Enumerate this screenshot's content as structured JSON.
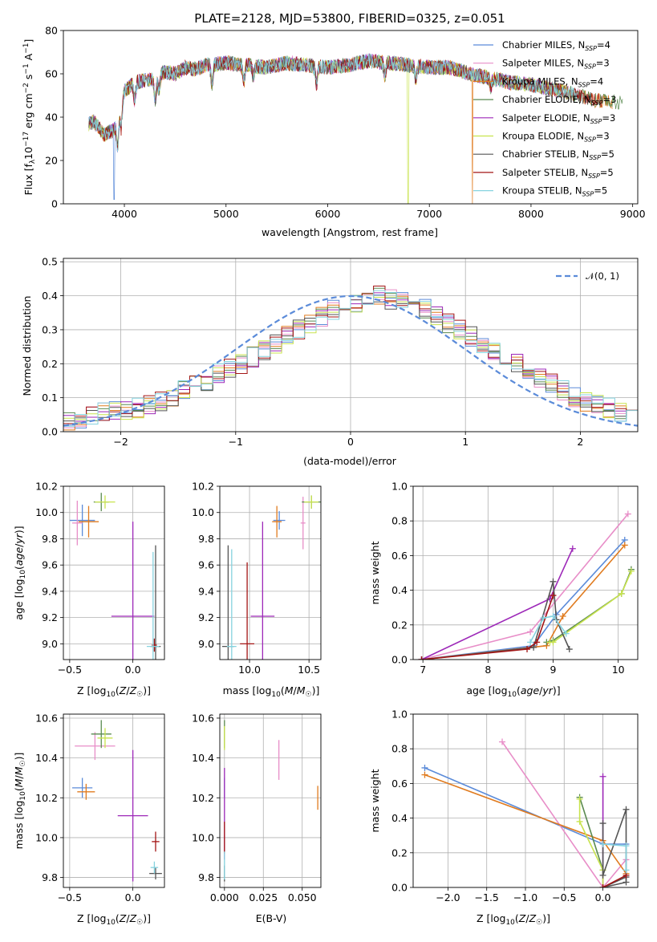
{
  "figure_title": "PLATE=2128, MJD=53800, FIBERID=0325, z=0.051",
  "colors": {
    "chabrier_miles": "#5b8bd9",
    "salpeter_miles": "#e88ec8",
    "kroupa_miles": "#e07b1f",
    "chabrier_elodie": "#5a8a50",
    "salpeter_elodie": "#9d28b8",
    "kroupa_elodie": "#c8e34e",
    "chabrier_stelib": "#555555",
    "salpeter_stelib": "#a31515",
    "kroupa_stelib": "#86d3df",
    "normal": "#5b8bd9",
    "grid": "#b0b0b0"
  },
  "legend_panel1": [
    {
      "text": "Chabrier MILES, N",
      "sub": "SSP",
      "tail": "=4",
      "color": "#5b8bd9"
    },
    {
      "text": "Salpeter MILES, N",
      "sub": "SSP",
      "tail": "=3",
      "color": "#e88ec8"
    },
    {
      "text": "Kroupa MILES, N",
      "sub": "SSP",
      "tail": "=4",
      "color": "#e07b1f"
    },
    {
      "text": "Chabrier ELODIE, N",
      "sub": "SSP",
      "tail": "=3",
      "color": "#5a8a50"
    },
    {
      "text": "Salpeter ELODIE, N",
      "sub": "SSP",
      "tail": "=3",
      "color": "#9d28b8"
    },
    {
      "text": "Kroupa ELODIE, N",
      "sub": "SSP",
      "tail": "=3",
      "color": "#c8e34e"
    },
    {
      "text": "Chabrier STELIB, N",
      "sub": "SSP",
      "tail": "=5",
      "color": "#555555"
    },
    {
      "text": "Salpeter STELIB, N",
      "sub": "SSP",
      "tail": "=5",
      "color": "#a31515"
    },
    {
      "text": "Kroupa STELIB, N",
      "sub": "SSP",
      "tail": "=5",
      "color": "#86d3df"
    }
  ],
  "legend_panel2": {
    "text": "𝒩(0, 1)",
    "color": "#5b8bd9"
  },
  "chart_data": [
    {
      "type": "line",
      "panel": "spectrum",
      "title": "PLATE=2128, MJD=53800, FIBERID=0325, z=0.051",
      "xlabel": "wavelength [Angstrom, rest frame]",
      "ylabel": "Flux [f_λ 10^-17 erg cm^-2 s^-1 A^-1]",
      "xlim": [
        3400,
        9050
      ],
      "ylim": [
        0,
        80
      ],
      "xticks": [
        4000,
        5000,
        6000,
        7000,
        8000,
        9000
      ],
      "yticks": [
        0,
        20,
        40,
        60,
        80
      ],
      "grid": false,
      "legend": "top-right",
      "continuum": {
        "x": [
          3650,
          3700,
          3800,
          3900,
          4000,
          4100,
          4200,
          4300,
          4400,
          4500,
          4600,
          4700,
          4800,
          5000,
          5200,
          5400,
          5600,
          5800,
          6000,
          6200,
          6400,
          6600,
          6800,
          7000,
          7200,
          7400,
          7600,
          7800,
          8000,
          8200,
          8400,
          8600,
          8800
        ],
        "y": [
          37,
          38,
          32,
          34,
          52,
          56,
          57,
          58,
          61,
          60,
          63,
          62,
          64,
          65,
          64,
          63,
          65,
          64,
          63,
          64,
          66,
          65,
          64,
          63,
          63,
          60,
          58,
          56,
          55,
          53,
          51,
          48,
          47
        ]
      },
      "end_wavelengths": [
        8300,
        8500,
        8800,
        8900,
        8250,
        8400,
        8600,
        8700,
        8450
      ],
      "drop_wavelengths": [
        3900,
        6790,
        7420
      ]
    },
    {
      "type": "line",
      "panel": "residual_histogram",
      "xlabel": "(data-model)/error",
      "ylabel": "Normed distribution",
      "xlim": [
        -2.5,
        2.5
      ],
      "ylim": [
        0,
        0.51
      ],
      "xticks": [
        -2,
        -1,
        0,
        1,
        2
      ],
      "yticks": [
        0.0,
        0.1,
        0.2,
        0.3,
        0.4,
        0.5
      ],
      "grid": true,
      "legend": "top-right",
      "gaussian": {
        "mean": 0,
        "sigma": 1
      },
      "bin_edges_start": -2.5,
      "bin_width": 0.1,
      "reference_histogram": [
        0.03,
        0.04,
        0.05,
        0.055,
        0.06,
        0.06,
        0.07,
        0.08,
        0.09,
        0.1,
        0.12,
        0.135,
        0.15,
        0.17,
        0.19,
        0.2,
        0.22,
        0.24,
        0.26,
        0.28,
        0.3,
        0.32,
        0.34,
        0.36,
        0.37,
        0.38,
        0.39,
        0.4,
        0.39,
        0.38,
        0.37,
        0.36,
        0.34,
        0.32,
        0.3,
        0.28,
        0.26,
        0.24,
        0.22,
        0.2,
        0.18,
        0.16,
        0.14,
        0.12,
        0.1,
        0.09,
        0.08,
        0.07,
        0.06,
        0.05
      ]
    },
    {
      "type": "scatter",
      "panel": "age_vs_Z",
      "xlabel": "Z [log10(Z/Z☉)]",
      "ylabel": "age [log10(age/yr)]",
      "xlim": [
        -0.55,
        0.25
      ],
      "ylim": [
        8.88,
        10.2
      ],
      "xticks": [
        -0.5,
        0.0
      ],
      "yticks": [
        9.0,
        9.2,
        9.4,
        9.6,
        9.8,
        10.0,
        10.2
      ],
      "grid": true,
      "points": [
        {
          "x": -0.4,
          "y": 9.94,
          "xerr": 0.1,
          "yerr": 0.12,
          "color": "#5b8bd9"
        },
        {
          "x": -0.44,
          "y": 9.92,
          "xerr": 0.04,
          "yerr": 0.17,
          "color": "#e88ec8"
        },
        {
          "x": -0.35,
          "y": 9.93,
          "xerr": 0.08,
          "yerr": 0.12,
          "color": "#e07b1f"
        },
        {
          "x": -0.25,
          "y": 10.08,
          "xerr": 0.06,
          "yerr": 0.07,
          "color": "#5a8a50"
        },
        {
          "x": 0.0,
          "y": 9.21,
          "xerr": 0.17,
          "yerr": 0.72,
          "color": "#9d28b8"
        },
        {
          "x": -0.22,
          "y": 10.08,
          "xerr": 0.08,
          "yerr": 0.05,
          "color": "#c8e34e"
        },
        {
          "x": 0.18,
          "y": 8.98,
          "xerr": 0.04,
          "yerr": 0.77,
          "color": "#555555"
        },
        {
          "x": 0.17,
          "y": 8.99,
          "xerr": 0.02,
          "yerr": 0.05,
          "color": "#a31515"
        },
        {
          "x": 0.16,
          "y": 8.98,
          "xerr": 0.05,
          "yerr": 0.72,
          "color": "#86d3df"
        }
      ]
    },
    {
      "type": "scatter",
      "panel": "age_vs_mass",
      "xlabel": "mass [log10(M/M☉)]",
      "ylabel": "",
      "xlim": [
        9.75,
        10.6
      ],
      "ylim": [
        8.88,
        10.2
      ],
      "xticks": [
        10.0,
        10.5
      ],
      "yticks": [
        9.0,
        9.2,
        9.4,
        9.6,
        9.8,
        10.0,
        10.2
      ],
      "grid": true,
      "points": [
        {
          "x": 10.25,
          "y": 9.94,
          "xerr": 0.05,
          "yerr": 0.07,
          "color": "#5b8bd9"
        },
        {
          "x": 10.45,
          "y": 9.92,
          "xerr": 0.02,
          "yerr": 0.2,
          "color": "#e88ec8"
        },
        {
          "x": 10.23,
          "y": 9.93,
          "xerr": 0.04,
          "yerr": 0.12,
          "color": "#e07b1f"
        },
        {
          "x": 10.52,
          "y": 10.08,
          "xerr": 0.08,
          "yerr": 0.05,
          "color": "#5a8a50"
        },
        {
          "x": 10.11,
          "y": 9.21,
          "xerr": 0.1,
          "yerr": 0.72,
          "color": "#9d28b8"
        },
        {
          "x": 10.52,
          "y": 10.08,
          "xerr": 0.06,
          "yerr": 0.05,
          "color": "#c8e34e"
        },
        {
          "x": 9.82,
          "y": 8.98,
          "xerr": 0.05,
          "yerr": 0.77,
          "color": "#555555"
        },
        {
          "x": 9.98,
          "y": 9.0,
          "xerr": 0.06,
          "yerr": 0.62,
          "color": "#a31515"
        },
        {
          "x": 9.85,
          "y": 8.98,
          "xerr": 0.04,
          "yerr": 0.74,
          "color": "#86d3df"
        }
      ]
    },
    {
      "type": "line",
      "panel": "mass_weight_vs_age",
      "xlabel": "age [log10(age/yr)]",
      "ylabel": "mass weight",
      "xlim": [
        6.85,
        10.3
      ],
      "ylim": [
        0,
        1.0
      ],
      "xticks": [
        7,
        8,
        9,
        10
      ],
      "yticks": [
        0.0,
        0.2,
        0.4,
        0.6,
        0.8,
        1.0
      ],
      "grid": true,
      "series": [
        {
          "color": "#5b8bd9",
          "x": [
            6.98,
            8.7,
            9.05,
            10.1
          ],
          "y": [
            0.0,
            0.08,
            0.26,
            0.69
          ]
        },
        {
          "color": "#e88ec8",
          "x": [
            6.98,
            8.65,
            10.15
          ],
          "y": [
            0.0,
            0.16,
            0.84
          ]
        },
        {
          "color": "#e07b1f",
          "x": [
            6.98,
            8.9,
            9.15,
            10.1
          ],
          "y": [
            0.0,
            0.08,
            0.25,
            0.66
          ]
        },
        {
          "color": "#5a8a50",
          "x": [
            8.9,
            9.0,
            10.05,
            10.2
          ],
          "y": [
            0.1,
            0.11,
            0.38,
            0.52
          ]
        },
        {
          "color": "#9d28b8",
          "x": [
            6.98,
            8.95,
            9.3
          ],
          "y": [
            0.0,
            0.35,
            0.64
          ]
        },
        {
          "color": "#c8e34e",
          "x": [
            8.95,
            9.0,
            10.05,
            10.2
          ],
          "y": [
            0.1,
            0.1,
            0.38,
            0.51
          ]
        },
        {
          "color": "#555555",
          "x": [
            6.98,
            8.7,
            9.0,
            9.05,
            9.25
          ],
          "y": [
            0.0,
            0.07,
            0.45,
            0.23,
            0.06
          ]
        },
        {
          "color": "#a31515",
          "x": [
            6.98,
            8.6,
            8.75,
            9.0
          ],
          "y": [
            0.0,
            0.06,
            0.1,
            0.37
          ]
        },
        {
          "color": "#86d3df",
          "x": [
            8.65,
            8.85,
            9.0,
            9.2
          ],
          "y": [
            0.1,
            0.24,
            0.25,
            0.15
          ]
        }
      ]
    },
    {
      "type": "scatter",
      "panel": "mass_vs_Z",
      "xlabel": "Z [log10(Z/Z☉)]",
      "ylabel": "mass [log10(M/M☉)]",
      "xlim": [
        -0.55,
        0.25
      ],
      "ylim": [
        9.75,
        10.62
      ],
      "xticks": [
        -0.5,
        0.0
      ],
      "yticks": [
        9.8,
        10.0,
        10.2,
        10.4,
        10.6
      ],
      "grid": true,
      "points": [
        {
          "x": -0.4,
          "y": 10.25,
          "xerr": 0.08,
          "yerr": 0.05,
          "color": "#5b8bd9"
        },
        {
          "x": -0.3,
          "y": 10.46,
          "xerr": 0.16,
          "yerr": 0.07,
          "color": "#e88ec8"
        },
        {
          "x": -0.37,
          "y": 10.23,
          "xerr": 0.07,
          "yerr": 0.04,
          "color": "#e07b1f"
        },
        {
          "x": -0.25,
          "y": 10.52,
          "xerr": 0.08,
          "yerr": 0.07,
          "color": "#5a8a50"
        },
        {
          "x": 0.0,
          "y": 10.11,
          "xerr": 0.12,
          "yerr": 0.33,
          "color": "#9d28b8"
        },
        {
          "x": -0.22,
          "y": 10.5,
          "xerr": 0.06,
          "yerr": 0.05,
          "color": "#c8e34e"
        },
        {
          "x": 0.18,
          "y": 9.82,
          "xerr": 0.05,
          "yerr": 0.03,
          "color": "#555555"
        },
        {
          "x": 0.18,
          "y": 9.98,
          "xerr": 0.03,
          "yerr": 0.05,
          "color": "#a31515"
        },
        {
          "x": 0.17,
          "y": 9.85,
          "xerr": 0.03,
          "yerr": 0.03,
          "color": "#86d3df"
        }
      ]
    },
    {
      "type": "scatter",
      "panel": "mass_vs_EBV",
      "xlabel": "E(B-V)",
      "ylabel": "",
      "xlim": [
        -0.003,
        0.062
      ],
      "ylim": [
        9.75,
        10.62
      ],
      "xticks": [
        0.0,
        0.025,
        0.05
      ],
      "yticks": [
        9.8,
        10.0,
        10.2,
        10.4,
        10.6
      ],
      "grid": true,
      "points": [
        {
          "x": 0.0,
          "y": 10.25,
          "xerr": 0,
          "yerr": 0.05,
          "color": "#5b8bd9"
        },
        {
          "x": 0.035,
          "y": 10.39,
          "xerr": 0,
          "yerr": 0.1,
          "color": "#e88ec8"
        },
        {
          "x": 0.06,
          "y": 10.2,
          "xerr": 0,
          "yerr": 0.06,
          "color": "#e07b1f"
        },
        {
          "x": 0.0,
          "y": 10.52,
          "xerr": 0,
          "yerr": 0.07,
          "color": "#5a8a50"
        },
        {
          "x": 0.0,
          "y": 10.12,
          "xerr": 0,
          "yerr": 0.23,
          "color": "#9d28b8"
        },
        {
          "x": 0.0,
          "y": 10.5,
          "xerr": 0,
          "yerr": 0.06,
          "color": "#c8e34e"
        },
        {
          "x": 0.0,
          "y": 9.82,
          "xerr": 0,
          "yerr": 0.04,
          "color": "#555555"
        },
        {
          "x": 0.0,
          "y": 10.0,
          "xerr": 0,
          "yerr": 0.08,
          "color": "#a31515"
        },
        {
          "x": 0.0,
          "y": 9.86,
          "xerr": 0,
          "yerr": 0.07,
          "color": "#86d3df"
        }
      ]
    },
    {
      "type": "line",
      "panel": "mass_weight_vs_Z",
      "xlabel": "Z [log10(Z/Z☉)]",
      "ylabel": "mass weight",
      "xlim": [
        -2.45,
        0.45
      ],
      "ylim": [
        0,
        1.0
      ],
      "xticks": [
        -2.0,
        -1.5,
        -1.0,
        -0.5,
        0.0
      ],
      "yticks": [
        0.0,
        0.2,
        0.4,
        0.6,
        0.8,
        1.0
      ],
      "grid": true,
      "series": [
        {
          "color": "#5b8bd9",
          "x": [
            -2.3,
            0.0,
            0.3
          ],
          "y": [
            0.69,
            0.25,
            0.25
          ]
        },
        {
          "color": "#e88ec8",
          "x": [
            -1.3,
            0.0,
            0.3
          ],
          "y": [
            0.84,
            0.0,
            0.16
          ]
        },
        {
          "color": "#e07b1f",
          "x": [
            -2.3,
            0.0,
            0.3
          ],
          "y": [
            0.65,
            0.27,
            0.08
          ]
        },
        {
          "color": "#5a8a50",
          "x": [
            -0.3,
            0.0
          ],
          "y": [
            0.52,
            0.1
          ]
        },
        {
          "color": "#9d28b8",
          "x": [
            0.0,
            0.0
          ],
          "y": [
            0.64,
            0.0
          ]
        },
        {
          "color": "#c8e34e",
          "x": [
            -0.3,
            -0.3,
            0.0,
            0.0
          ],
          "y": [
            0.51,
            0.38,
            0.1,
            0.0
          ]
        },
        {
          "color": "#555555",
          "x": [
            0.0,
            0.0,
            0.3,
            0.3,
            0.0,
            0.3
          ],
          "y": [
            0.37,
            0.07,
            0.45,
            0.03,
            0.0,
            0.06
          ]
        },
        {
          "color": "#a31515",
          "x": [
            0.0,
            0.3
          ],
          "y": [
            0.0,
            0.07
          ]
        },
        {
          "color": "#86d3df",
          "x": [
            0.0,
            0.3,
            0.3
          ],
          "y": [
            0.25,
            0.24,
            0.1
          ]
        }
      ]
    }
  ],
  "labels": {
    "ax1_x": "wavelength [Angstrom, rest frame]",
    "ax2_x": "(data-model)/error",
    "ax2_y": "Normed distribution",
    "ax6_x": "age",
    "ax6_y": "mass weight",
    "ax7_x": "E(B-V)",
    "ax8_y": "mass weight"
  }
}
